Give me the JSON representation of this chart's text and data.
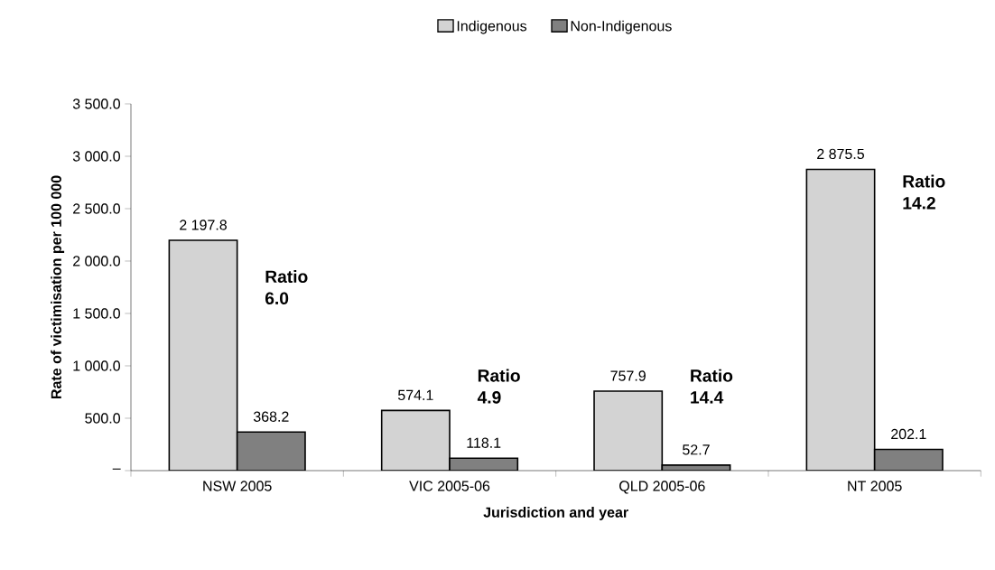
{
  "chart_data": {
    "type": "bar",
    "xlabel": "Jurisdiction and year",
    "ylabel": "Rate of victimisation per 100 000",
    "categories": [
      "NSW 2005",
      "VIC 2005-06",
      "QLD 2005-06",
      "NT 2005"
    ],
    "series": [
      {
        "name": "Indigenous",
        "color": "#d3d3d3",
        "values": [
          2197.8,
          574.1,
          757.9,
          2875.5
        ],
        "value_labels": [
          "2 197.8",
          "574.1",
          "757.9",
          "2 875.5"
        ]
      },
      {
        "name": "Non-Indigenous",
        "color": "#808080",
        "values": [
          368.2,
          118.1,
          52.7,
          202.1
        ],
        "value_labels": [
          "368.2",
          "118.1",
          "52.7",
          "202.1"
        ]
      }
    ],
    "ylim": [
      0,
      3500
    ],
    "yticks": [
      {
        "value": 0,
        "label": "–"
      },
      {
        "value": 500,
        "label": "500.0"
      },
      {
        "value": 1000,
        "label": "1 000.0"
      },
      {
        "value": 1500,
        "label": "1 500.0"
      },
      {
        "value": 2000,
        "label": "2 000.0"
      },
      {
        "value": 2500,
        "label": "2 500.0"
      },
      {
        "value": 3000,
        "label": "3 000.0"
      },
      {
        "value": 3500,
        "label": "3 500.0"
      }
    ],
    "annotations": [
      "**Ratio 6.0**",
      "**Ratio 4.9**",
      "**Ratio 14.4**",
      "**Ratio 14.2**"
    ],
    "grid": false,
    "legend": "top"
  }
}
